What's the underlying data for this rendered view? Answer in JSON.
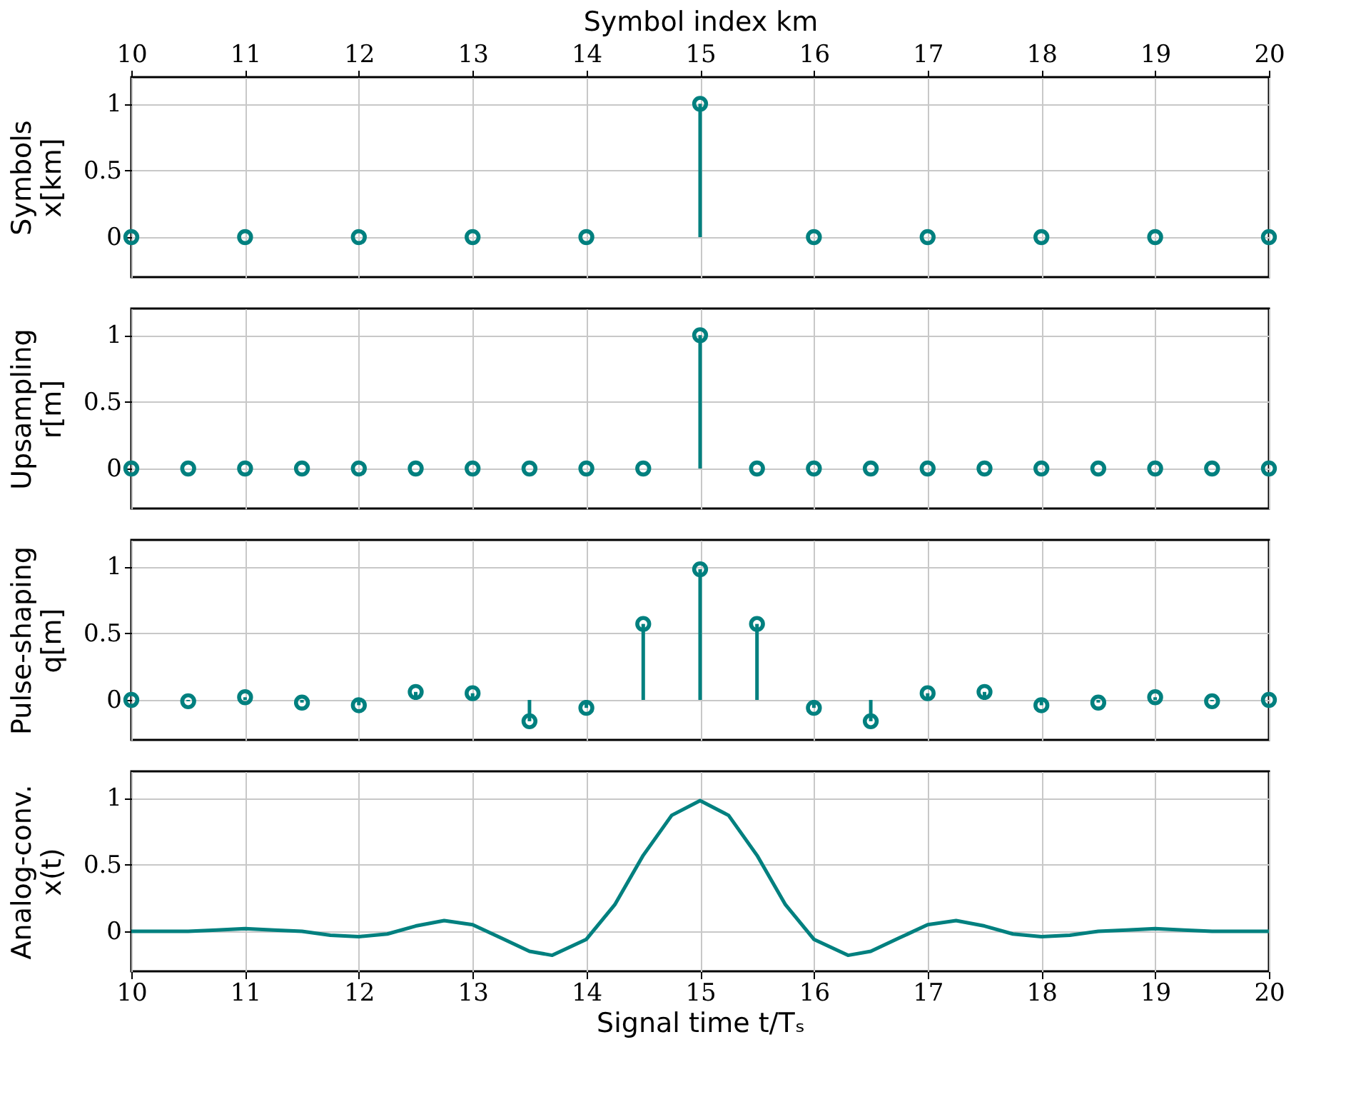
{
  "chart_data": [
    {
      "type": "lollipop",
      "ylabel": "Symbols\nx[km]",
      "x2label": "Symbol index km",
      "x2lim": [
        10,
        20
      ],
      "x2ticks": [
        10,
        11,
        12,
        13,
        14,
        15,
        16,
        17,
        18,
        19,
        20
      ],
      "xlim": [
        10,
        20
      ],
      "xticks": [
        10,
        11,
        12,
        13,
        14,
        15,
        16,
        17,
        18,
        19,
        20
      ],
      "tick_labels": "y",
      "ylim": [
        -0.3,
        1.2
      ],
      "yticks": [
        0,
        0.5,
        1
      ],
      "grid": true,
      "marker": "circle",
      "series": [
        {
          "color": "#00807f",
          "x": [
            10,
            11,
            12,
            13,
            14,
            15,
            16,
            17,
            18,
            19,
            20
          ],
          "values": [
            0,
            0,
            0,
            0,
            0,
            1,
            0,
            0,
            0,
            0,
            0
          ]
        }
      ]
    },
    {
      "type": "lollipop",
      "ylabel": "Upsampling\nr[m]",
      "xlim": [
        10,
        20
      ],
      "xticks": [
        10,
        11,
        12,
        13,
        14,
        15,
        16,
        17,
        18,
        19,
        20
      ],
      "ylim": [
        -0.3,
        1.2
      ],
      "yticks": [
        0,
        0.5,
        1
      ],
      "grid": true,
      "marker": "circle",
      "tick_labels": "y",
      "series": [
        {
          "color": "#00807f",
          "x": [
            10,
            10.5,
            11,
            11.5,
            12,
            12.5,
            13,
            13.5,
            14,
            14.5,
            15,
            15.5,
            16,
            16.5,
            17,
            17.5,
            18,
            18.5,
            19,
            19.5,
            20
          ],
          "values": [
            0,
            0,
            0,
            0,
            0,
            0,
            0,
            0,
            0,
            0,
            1,
            0,
            0,
            0,
            0,
            0,
            0,
            0,
            0,
            0,
            0
          ]
        }
      ]
    },
    {
      "type": "lollipop",
      "ylabel": "Pulse-shaping\nq[m]",
      "xlim": [
        10,
        20
      ],
      "xticks": [
        10,
        11,
        12,
        13,
        14,
        15,
        16,
        17,
        18,
        19,
        20
      ],
      "ylim": [
        -0.3,
        1.2
      ],
      "yticks": [
        0,
        0.5,
        1
      ],
      "grid": true,
      "marker": "circle",
      "tick_labels": "y",
      "series": [
        {
          "color": "#00807f",
          "x": [
            10,
            10.5,
            11,
            11.5,
            12,
            12.5,
            13,
            13.5,
            14,
            14.5,
            15,
            15.5,
            16,
            16.5,
            17,
            17.5,
            18,
            18.5,
            19,
            19.5,
            20
          ],
          "values": [
            0,
            -0.01,
            0.02,
            -0.02,
            -0.04,
            0.06,
            0.05,
            -0.16,
            -0.06,
            0.57,
            0.98,
            0.57,
            -0.06,
            -0.16,
            0.05,
            0.06,
            -0.04,
            -0.02,
            0.02,
            -0.01,
            0
          ]
        }
      ]
    },
    {
      "type": "line",
      "ylabel": "Analog-conv.\nx(t)",
      "xlabel": "Signal time t/Tₛ",
      "xlim": [
        10,
        20
      ],
      "xticks": [
        10,
        11,
        12,
        13,
        14,
        15,
        16,
        17,
        18,
        19,
        20
      ],
      "ylim": [
        -0.3,
        1.2
      ],
      "yticks": [
        0,
        0.5,
        1
      ],
      "grid": true,
      "marker": "none",
      "series": [
        {
          "color": "#00807f",
          "x": [
            10,
            10.25,
            10.5,
            10.75,
            11,
            11.25,
            11.5,
            11.75,
            12,
            12.25,
            12.5,
            12.75,
            13,
            13.25,
            13.5,
            13.7,
            14,
            14.25,
            14.5,
            14.75,
            15,
            15.25,
            15.5,
            15.75,
            16,
            16.3,
            16.5,
            16.75,
            17,
            17.25,
            17.5,
            17.75,
            18,
            18.25,
            18.5,
            18.75,
            19,
            19.25,
            19.5,
            19.75,
            20
          ],
          "values": [
            0,
            0,
            0,
            0.01,
            0.02,
            0.01,
            0,
            -0.03,
            -0.04,
            -0.02,
            0.04,
            0.08,
            0.05,
            -0.05,
            -0.15,
            -0.18,
            -0.06,
            0.2,
            0.57,
            0.87,
            0.98,
            0.87,
            0.57,
            0.2,
            -0.06,
            -0.18,
            -0.15,
            -0.05,
            0.05,
            0.08,
            0.04,
            -0.02,
            -0.04,
            -0.03,
            0,
            0.01,
            0.02,
            0.01,
            0,
            0,
            0
          ]
        }
      ]
    }
  ]
}
